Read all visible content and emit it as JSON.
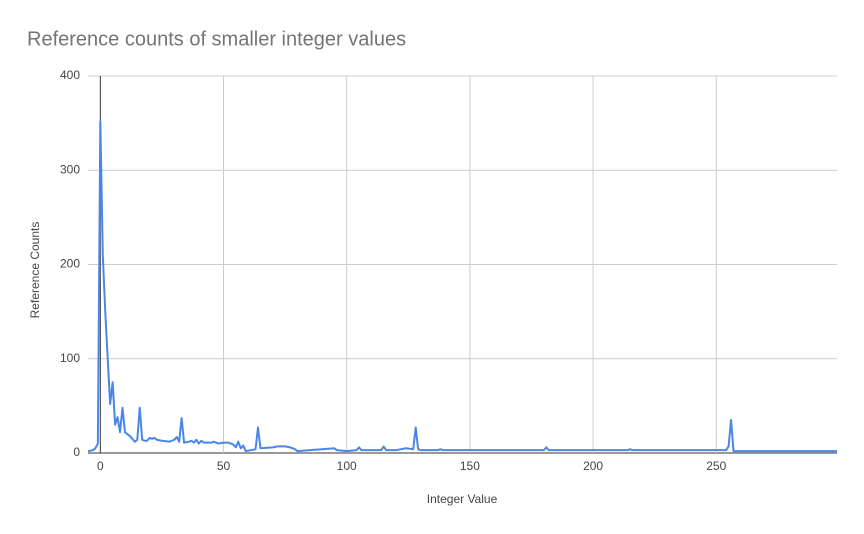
{
  "chart_data": {
    "type": "line",
    "title": "Reference counts of smaller integer values",
    "x_label": "Integer Value",
    "y_label": "Reference Counts",
    "x": [
      -5,
      -3,
      -2,
      -1,
      0,
      1,
      2,
      3,
      4,
      5,
      6,
      7,
      8,
      9,
      10,
      11,
      12,
      13,
      14,
      15,
      16,
      17,
      18,
      19,
      20,
      21,
      22,
      23,
      25,
      28,
      30,
      31,
      32,
      33,
      34,
      36,
      37,
      38,
      39,
      40,
      41,
      42,
      45,
      46,
      48,
      50,
      52,
      54,
      55,
      56,
      57,
      58,
      59,
      61,
      63,
      64,
      65,
      70,
      72,
      75,
      77,
      79,
      80,
      85,
      90,
      95,
      96,
      100,
      104,
      105,
      106,
      110,
      114,
      115,
      116,
      120,
      124,
      127,
      128,
      129,
      130,
      137,
      138,
      139,
      180,
      181,
      182,
      214,
      215,
      216,
      254,
      255,
      256,
      257,
      299
    ],
    "series": [
      {
        "name": "Reference Counts",
        "color": "#4a86e8",
        "values": [
          2,
          3,
          5,
          10,
          352,
          210,
          150,
          100,
          52,
          75,
          30,
          38,
          22,
          48,
          22,
          20,
          18,
          15,
          12,
          14,
          48,
          14,
          13,
          13,
          16,
          15,
          16,
          14,
          13,
          12,
          14,
          17,
          12,
          37,
          11,
          12,
          13,
          11,
          14,
          10,
          13,
          11,
          11,
          12,
          10,
          11,
          11,
          9,
          6,
          12,
          5,
          8,
          2,
          3,
          4,
          27,
          5,
          6,
          7,
          7,
          6,
          4,
          2,
          3,
          4,
          5,
          3,
          2,
          3,
          6,
          3,
          3,
          3,
          7,
          3,
          3,
          5,
          4,
          27,
          4,
          3,
          3,
          4,
          3,
          3,
          6,
          3,
          3,
          4,
          3,
          3,
          7,
          35,
          2,
          2
        ]
      }
    ],
    "xlim": [
      -5,
      299
    ],
    "ylim": [
      0,
      400
    ],
    "xticks": [
      0,
      50,
      100,
      150,
      200,
      250
    ],
    "yticks": [
      0,
      100,
      200,
      300,
      400
    ],
    "grid": true
  }
}
